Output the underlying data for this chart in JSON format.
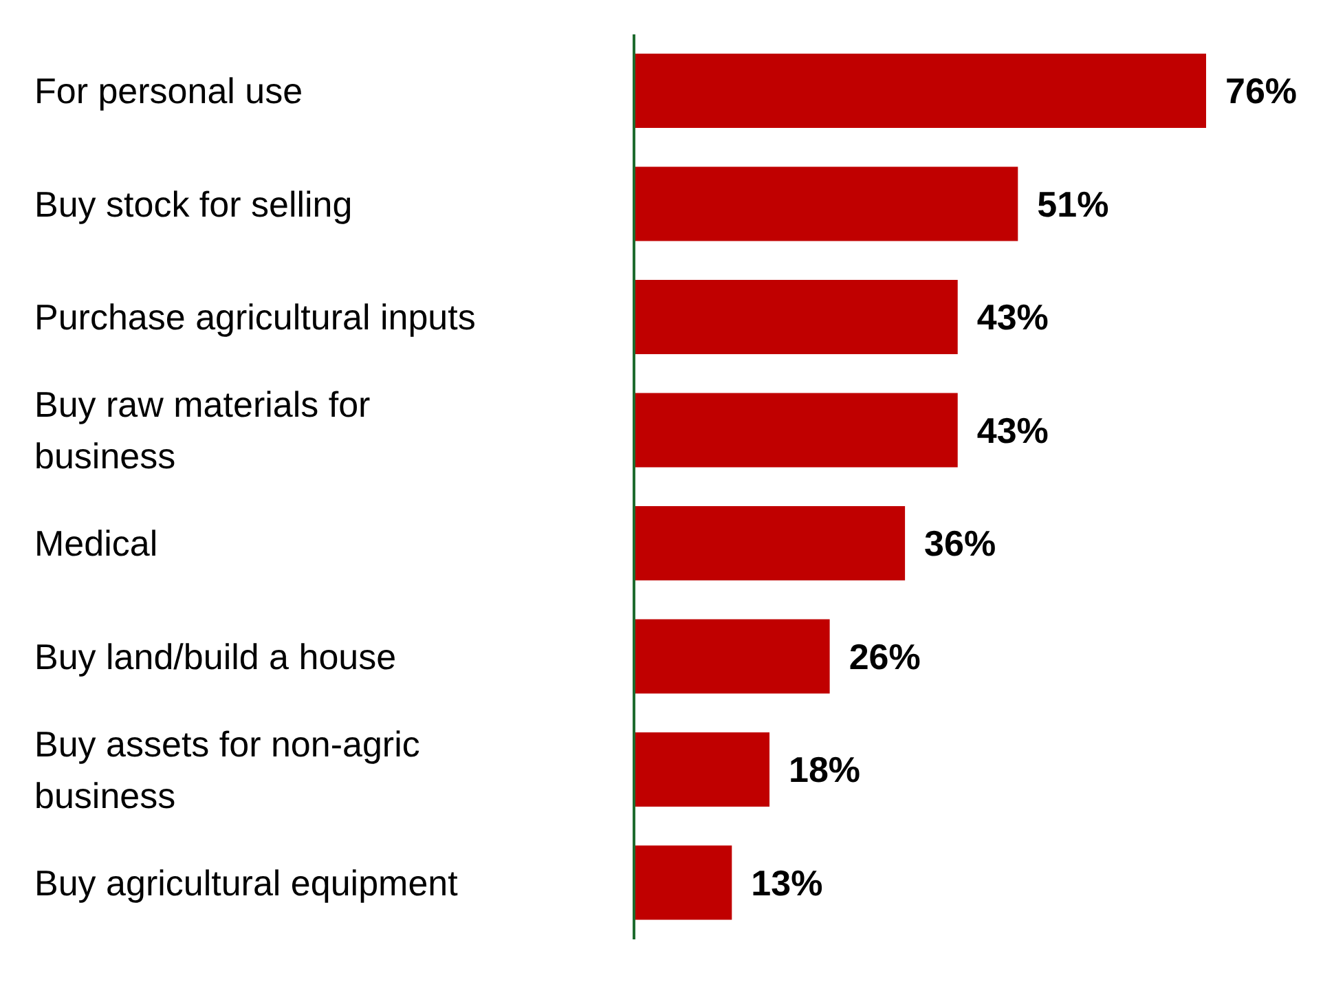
{
  "chart_data": {
    "type": "bar",
    "orientation": "horizontal",
    "tick_labels": "y",
    "grid": false,
    "legend": false,
    "categories": [
      "For personal use",
      "Buy stock for selling",
      "Purchase agricultural inputs",
      "Buy raw materials for business",
      "Medical",
      "Buy land/build a house",
      "Buy assets for non-agric business",
      "Buy agricultural equipment"
    ],
    "series": [
      {
        "color": "#c00000",
        "values": [
          76,
          51,
          43,
          43,
          36,
          26,
          18,
          13
        ],
        "value_labels": [
          "76%",
          "51%",
          "43%",
          "43%",
          "36%",
          "26%",
          "18%",
          "13%"
        ]
      }
    ]
  }
}
